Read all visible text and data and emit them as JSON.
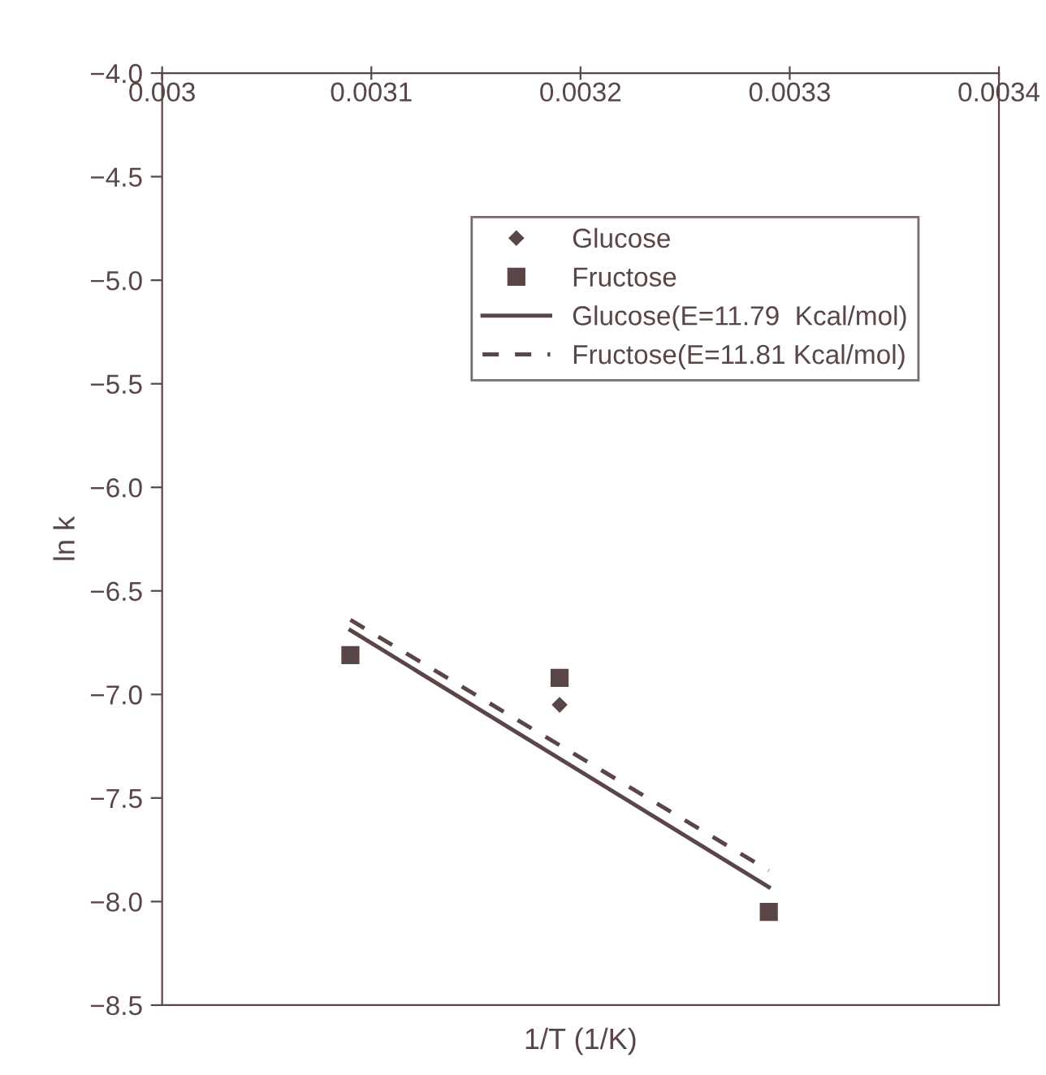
{
  "chart_data": {
    "type": "scatter",
    "xlabel": "1/T (1/K)",
    "ylabel": "ln k",
    "xlim": [
      0.003,
      0.0034
    ],
    "xticks": [
      0.003,
      0.0031,
      0.0032,
      0.0033,
      0.0034
    ],
    "ylim": [
      -8.5,
      -4.0
    ],
    "yticks": [
      {
        "value": -4.0,
        "label": "−4.0"
      },
      {
        "value": -4.5,
        "label": "−4.5"
      },
      {
        "value": -5.0,
        "label": "−5.0"
      },
      {
        "value": -5.5,
        "label": "−5.5"
      },
      {
        "value": -6.0,
        "label": "−6.0"
      },
      {
        "value": -6.5,
        "label": "−6.5"
      },
      {
        "value": -7.0,
        "label": "−7.0"
      },
      {
        "value": -7.5,
        "label": "−7.5"
      },
      {
        "value": -8.0,
        "label": "−8.0"
      },
      {
        "value": -8.5,
        "label": "−8.5"
      }
    ],
    "grid": false,
    "legend": "top right",
    "series": [
      {
        "name": "Glucose",
        "marker": "diamond",
        "color": "#5a4646",
        "x": [
          0.00319
        ],
        "values": [
          -7.05
        ]
      },
      {
        "name": "Fructose",
        "marker": "square",
        "color": "#5a4646",
        "x": [
          0.00309,
          0.00319,
          0.00329
        ],
        "values": [
          -6.81,
          -6.92,
          -8.05
        ]
      },
      {
        "name": "Glucose(E=11.79  Kcal/mol)",
        "type": "line",
        "line_style": "solid",
        "color": "#5a4646",
        "x": [
          0.00309,
          0.00329
        ],
        "values": [
          -6.69,
          -7.93
        ]
      },
      {
        "name": "Fructose(E=11.81 Kcal/mol)",
        "type": "line",
        "line_style": "dashed",
        "color": "#5a4646",
        "x": [
          0.00309,
          0.00329
        ],
        "values": [
          -6.64,
          -7.85
        ]
      }
    ]
  }
}
